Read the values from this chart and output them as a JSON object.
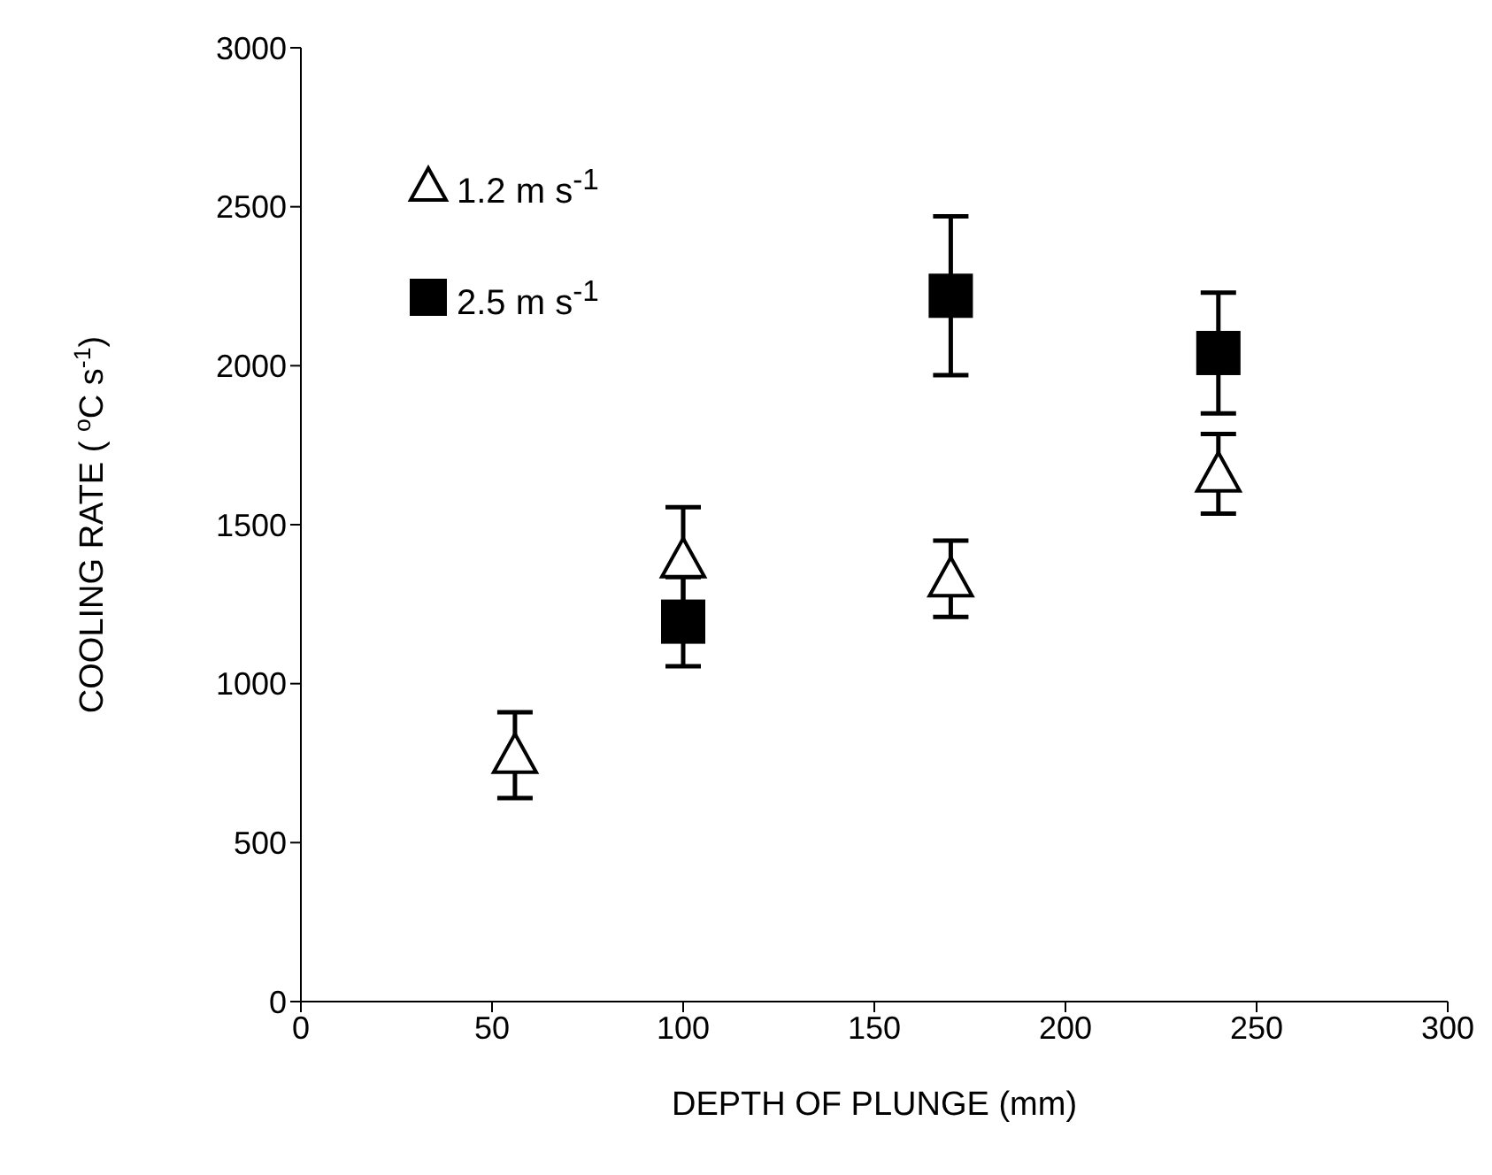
{
  "chart_data": {
    "type": "scatter",
    "xlabel": "DEPTH OF PLUNGE (mm)",
    "ylabel": "COOLING RATE ( $^{o}$C s$^{-1}$)",
    "xlim": [
      0,
      300
    ],
    "xticks": [
      0,
      50,
      100,
      150,
      200,
      250,
      300
    ],
    "ylim": [
      0,
      3000
    ],
    "yticks": [
      0,
      500,
      1000,
      1500,
      2000,
      2500,
      3000
    ],
    "legend": "top left",
    "grid": false,
    "series": [
      {
        "name": "1.2 m s$^{-1}$",
        "color": "#000000",
        "marker": "triangle",
        "x": [
          56,
          100,
          170,
          240
        ],
        "values": [
          775,
          1390,
          1330,
          1660
        ],
        "errors": [
          135,
          165,
          120,
          125
        ]
      },
      {
        "name": "2.5 m s$^{-1}$",
        "color": "#000000",
        "marker": "square",
        "x": [
          100,
          170,
          240
        ],
        "values": [
          1195,
          2220,
          2040
        ],
        "errors": [
          140,
          250,
          190
        ]
      }
    ]
  }
}
